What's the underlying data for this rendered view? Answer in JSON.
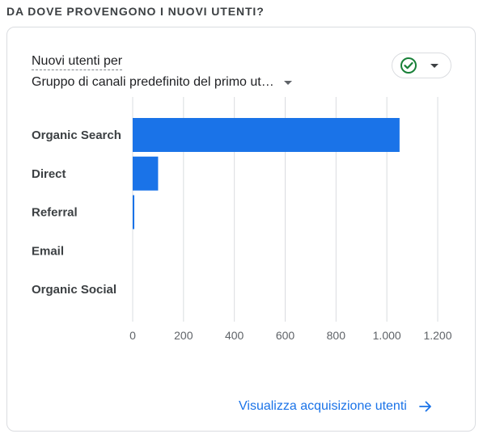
{
  "section_title": "DA DOVE PROVENGONO I NUOVI UTENTI?",
  "card": {
    "metric_label": "Nuovi utenti per",
    "dimension_label": "Gruppo di canali predefinito del primo ut…",
    "footer_link": "Visualizza acquisizione utenti"
  },
  "colors": {
    "bar": "#1a73e8",
    "check": "#188038",
    "link": "#1a73e8"
  },
  "chart_data": {
    "type": "bar",
    "orientation": "horizontal",
    "categories": [
      "Organic Search",
      "Direct",
      "Referral",
      "Email",
      "Organic Social"
    ],
    "values": [
      1050,
      100,
      5,
      0,
      0
    ],
    "xlim": [
      0,
      1200
    ],
    "xticks": [
      0,
      200,
      400,
      600,
      800,
      1000,
      1200
    ],
    "xtick_labels": [
      "0",
      "200",
      "400",
      "600",
      "800",
      "1.000",
      "1.200"
    ],
    "grid": true,
    "legend": "none"
  }
}
